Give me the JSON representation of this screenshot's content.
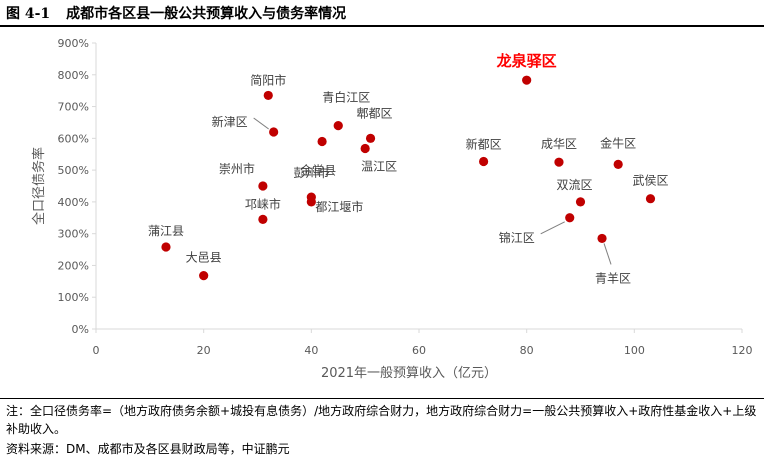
{
  "figure": {
    "number": "图 4-1",
    "title": "成都市各区县一般公共预算收入与债务率情况"
  },
  "note": "注：全口径债务率=（地方政府债务余额+城投有息债务）/地方政府综合财力，地方政府综合财力=一般公共预算收入+政府性基金收入+上级补助收入。",
  "source": "资料来源：DM、成都市及各区县财政局等，中证鹏元",
  "colors": {
    "point": "#c00000",
    "highlight_label": "#ff0000",
    "axis_text": "#595959",
    "grid": "#d9d9d9"
  },
  "chart_data": {
    "type": "scatter",
    "xlabel": "2021年一般预算收入（亿元）",
    "ylabel": "全口径债务率",
    "xlim": [
      0,
      120
    ],
    "ylim": [
      0,
      900
    ],
    "xticks": [
      "0",
      "20",
      "40",
      "60",
      "80",
      "100",
      "120"
    ],
    "yticks": [
      "0%",
      "100%",
      "200%",
      "300%",
      "400%",
      "500%",
      "600%",
      "700%",
      "800%",
      "900%"
    ],
    "grid": "none",
    "points": [
      {
        "name": "简阳市",
        "x": 32,
        "y": 735
      },
      {
        "name": "新津区",
        "x": 33,
        "y": 620
      },
      {
        "name": "青白江区",
        "x": 45,
        "y": 640
      },
      {
        "name": "郫都区",
        "x": 51,
        "y": 600
      },
      {
        "name": "金堂县",
        "x": 42,
        "y": 590
      },
      {
        "name": "温江区",
        "x": 50,
        "y": 568
      },
      {
        "name": "崇州市",
        "x": 31,
        "y": 450
      },
      {
        "name": "彭州市",
        "x": 40,
        "y": 415
      },
      {
        "name": "都江堰市",
        "x": 40,
        "y": 400
      },
      {
        "name": "邛崃市",
        "x": 31,
        "y": 345
      },
      {
        "name": "蒲江县",
        "x": 13,
        "y": 258
      },
      {
        "name": "大邑县",
        "x": 20,
        "y": 168
      },
      {
        "name": "龙泉驿区",
        "x": 80,
        "y": 783,
        "highlight": true
      },
      {
        "name": "新都区",
        "x": 72,
        "y": 527
      },
      {
        "name": "成华区",
        "x": 86,
        "y": 525
      },
      {
        "name": "金牛区",
        "x": 97,
        "y": 518
      },
      {
        "name": "双流区",
        "x": 90,
        "y": 400
      },
      {
        "name": "武侯区",
        "x": 103,
        "y": 410
      },
      {
        "name": "锦江区",
        "x": 88,
        "y": 350
      },
      {
        "name": "青羊区",
        "x": 94,
        "y": 285
      }
    ]
  }
}
